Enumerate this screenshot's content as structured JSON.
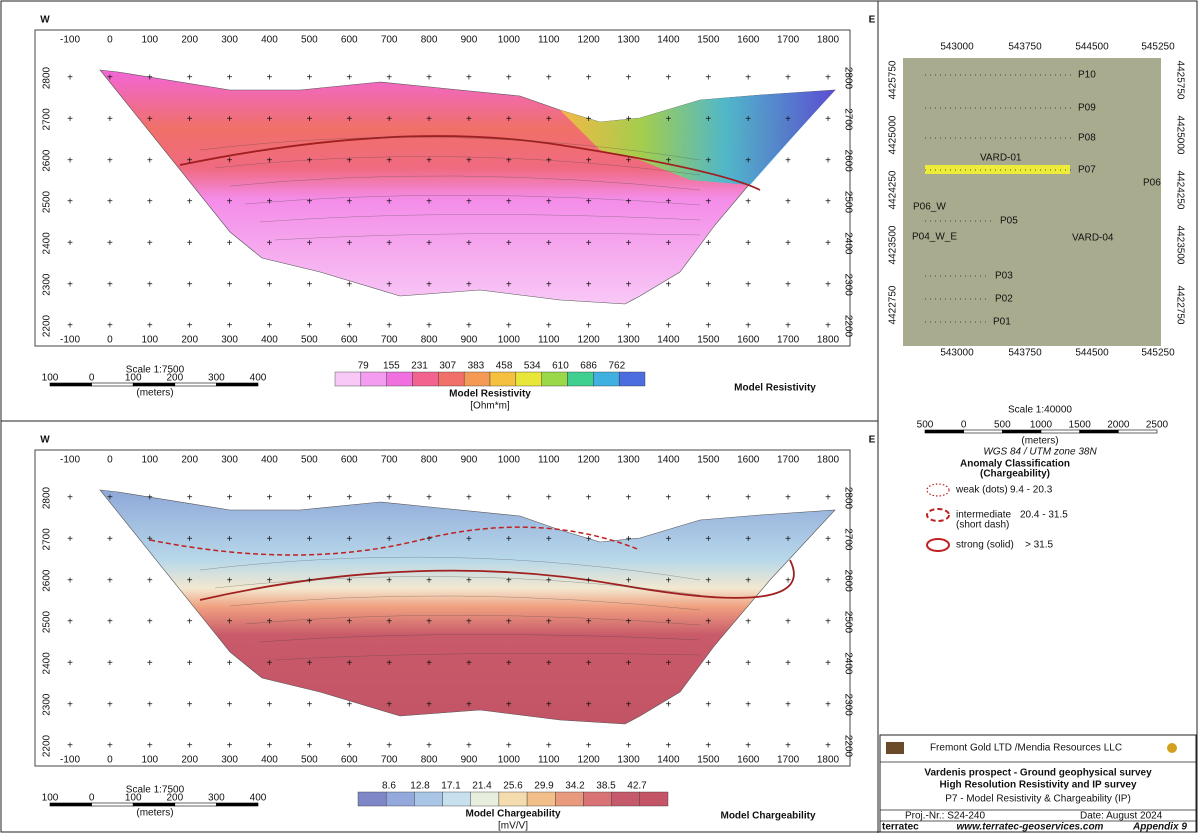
{
  "sections": [
    {
      "west": "W",
      "east": "E",
      "x_ticks": [
        -100,
        0,
        100,
        200,
        300,
        400,
        500,
        600,
        700,
        800,
        900,
        1000,
        1100,
        1200,
        1300,
        1400,
        1500,
        1600,
        1700,
        1800
      ],
      "y_ticks": [
        2200,
        2300,
        2400,
        2500,
        2600,
        2700,
        2800
      ],
      "scale": "Scale 1:7500",
      "scale_bar": [
        100,
        0,
        100,
        200,
        300,
        400
      ],
      "scale_unit": "(meters)",
      "colorbar": {
        "ticks": [
          79,
          155,
          231,
          307,
          383,
          458,
          534,
          610,
          686,
          762
        ],
        "title": "Model Resistivity",
        "unit": "[Ohm*m]"
      },
      "title": "Model Resistivity"
    },
    {
      "west": "W",
      "east": "E",
      "x_ticks": [
        -100,
        0,
        100,
        200,
        300,
        400,
        500,
        600,
        700,
        800,
        900,
        1000,
        1100,
        1200,
        1300,
        1400,
        1500,
        1600,
        1700,
        1800
      ],
      "y_ticks": [
        2200,
        2300,
        2400,
        2500,
        2600,
        2700,
        2800
      ],
      "scale": "Scale 1:7500",
      "scale_bar": [
        100,
        0,
        100,
        200,
        300,
        400
      ],
      "scale_unit": "(meters)",
      "colorbar": {
        "ticks": [
          8.6,
          12.8,
          17.1,
          21.4,
          25.6,
          29.9,
          34.2,
          38.5,
          42.7
        ],
        "title": "Model Chargeability",
        "unit": "[mV/V]"
      },
      "title": "Model Chargeability"
    }
  ],
  "map": {
    "eastings": [
      543000,
      543750,
      544500,
      545250
    ],
    "northings": [
      4425750,
      4425000,
      4424250,
      4423500,
      4422750
    ],
    "profiles": [
      "P10",
      "P09",
      "P08",
      "P07",
      "P06",
      "P06_W",
      "P05",
      "P04_W_E",
      "P03",
      "P02",
      "P01"
    ],
    "boreholes": [
      "VARD-01",
      "VARD-04"
    ],
    "scale": "Scale 1:40000",
    "scale_bar": [
      500,
      0,
      500,
      1000,
      1500,
      2000,
      2500
    ],
    "scale_unit": "(meters)",
    "datum": "WGS 84 / UTM zone 38N"
  },
  "legend": {
    "title": "Anomaly Classification",
    "subtitle": "(Chargeability)",
    "items": [
      {
        "label": "weak (dots)",
        "range": "9.4 - 20.3"
      },
      {
        "label": "intermediate",
        "label2": "(short dash)",
        "range": "20.4 - 31.5"
      },
      {
        "label": "strong (solid)",
        "range": "> 31.5"
      }
    ]
  },
  "title_block": {
    "company": "Fremont Gold LTD /Mendia Resources LLC",
    "line1": "Vardenis prospect - Ground geophysical survey",
    "line2": "High Resolution Resistivity and IP survey",
    "line3": "P7 - Model Resistivity & Chargeability (IP)",
    "project": "Proj.-Nr.: S24-240",
    "date": "Date: August 2024",
    "website": "www.terratec-geoservices.com",
    "appendix": "Appendix 9",
    "logo": "terratec"
  }
}
